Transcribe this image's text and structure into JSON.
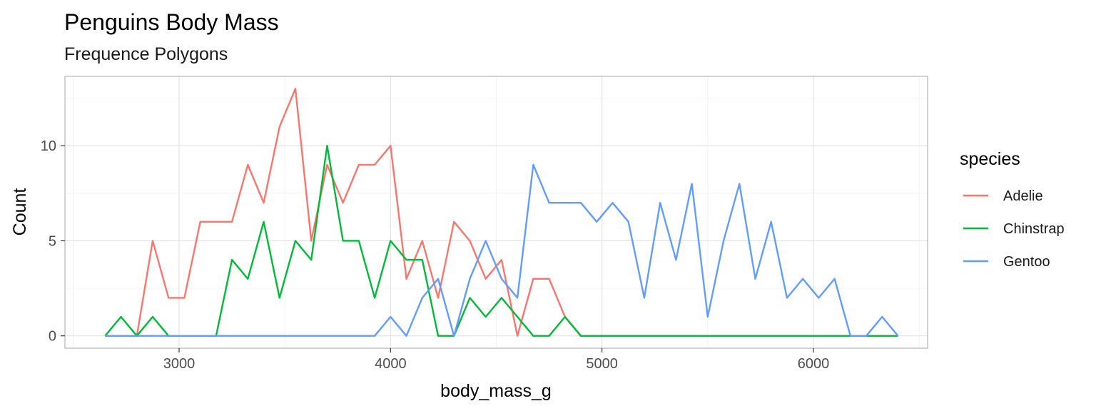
{
  "chart_data": {
    "type": "line",
    "title": "Penguins Body Mass",
    "subtitle": "Frequence Polygons",
    "xlabel": "body_mass_g",
    "ylabel": "Count",
    "xlim": [
      2460,
      6540
    ],
    "ylim": [
      -0.65,
      13.65
    ],
    "x_ticks": [
      3000,
      4000,
      5000,
      6000
    ],
    "y_ticks": [
      0,
      5,
      10
    ],
    "grid": true,
    "legend": {
      "title": "species",
      "position": "right"
    },
    "x": [
      2650,
      2725,
      2800,
      2875,
      2950,
      3025,
      3100,
      3175,
      3250,
      3325,
      3400,
      3475,
      3550,
      3625,
      3700,
      3775,
      3850,
      3925,
      4000,
      4075,
      4150,
      4225,
      4300,
      4375,
      4450,
      4525,
      4600,
      4675,
      4750,
      4825,
      4900,
      4975,
      5050,
      5125,
      5200,
      5275,
      5350,
      5425,
      5500,
      5575,
      5650,
      5725,
      5800,
      5875,
      5950,
      6025,
      6100,
      6175,
      6250,
      6325,
      6400
    ],
    "series": [
      {
        "name": "Adelie",
        "color": "#F8766D",
        "values": [
          0,
          0,
          0,
          5,
          2,
          2,
          6,
          6,
          6,
          9,
          7,
          11,
          13,
          5,
          9,
          7,
          9,
          9,
          10,
          3,
          5,
          2,
          6,
          5,
          3,
          4,
          0,
          3,
          3,
          1,
          0,
          0,
          0,
          0,
          0,
          0,
          0,
          0,
          0,
          0,
          0,
          0,
          0,
          0,
          0,
          0,
          0,
          0,
          0,
          0,
          0
        ]
      },
      {
        "name": "Chinstrap",
        "color": "#00BA38",
        "values": [
          0,
          1,
          0,
          1,
          0,
          0,
          0,
          0,
          4,
          3,
          6,
          2,
          5,
          4,
          10,
          5,
          5,
          2,
          5,
          4,
          4,
          0,
          0,
          2,
          1,
          2,
          1,
          0,
          0,
          1,
          0,
          0,
          0,
          0,
          0,
          0,
          0,
          0,
          0,
          0,
          0,
          0,
          0,
          0,
          0,
          0,
          0,
          0,
          0,
          0,
          0
        ]
      },
      {
        "name": "Gentoo",
        "color": "#619CFF",
        "values": [
          0,
          0,
          0,
          0,
          0,
          0,
          0,
          0,
          0,
          0,
          0,
          0,
          0,
          0,
          0,
          0,
          0,
          0,
          1,
          0,
          2,
          3,
          0,
          3,
          5,
          3,
          2,
          9,
          7,
          7,
          7,
          6,
          7,
          6,
          2,
          7,
          4,
          8,
          1,
          5,
          8,
          3,
          6,
          2,
          3,
          2,
          3,
          0,
          0,
          1,
          0
        ]
      }
    ]
  }
}
